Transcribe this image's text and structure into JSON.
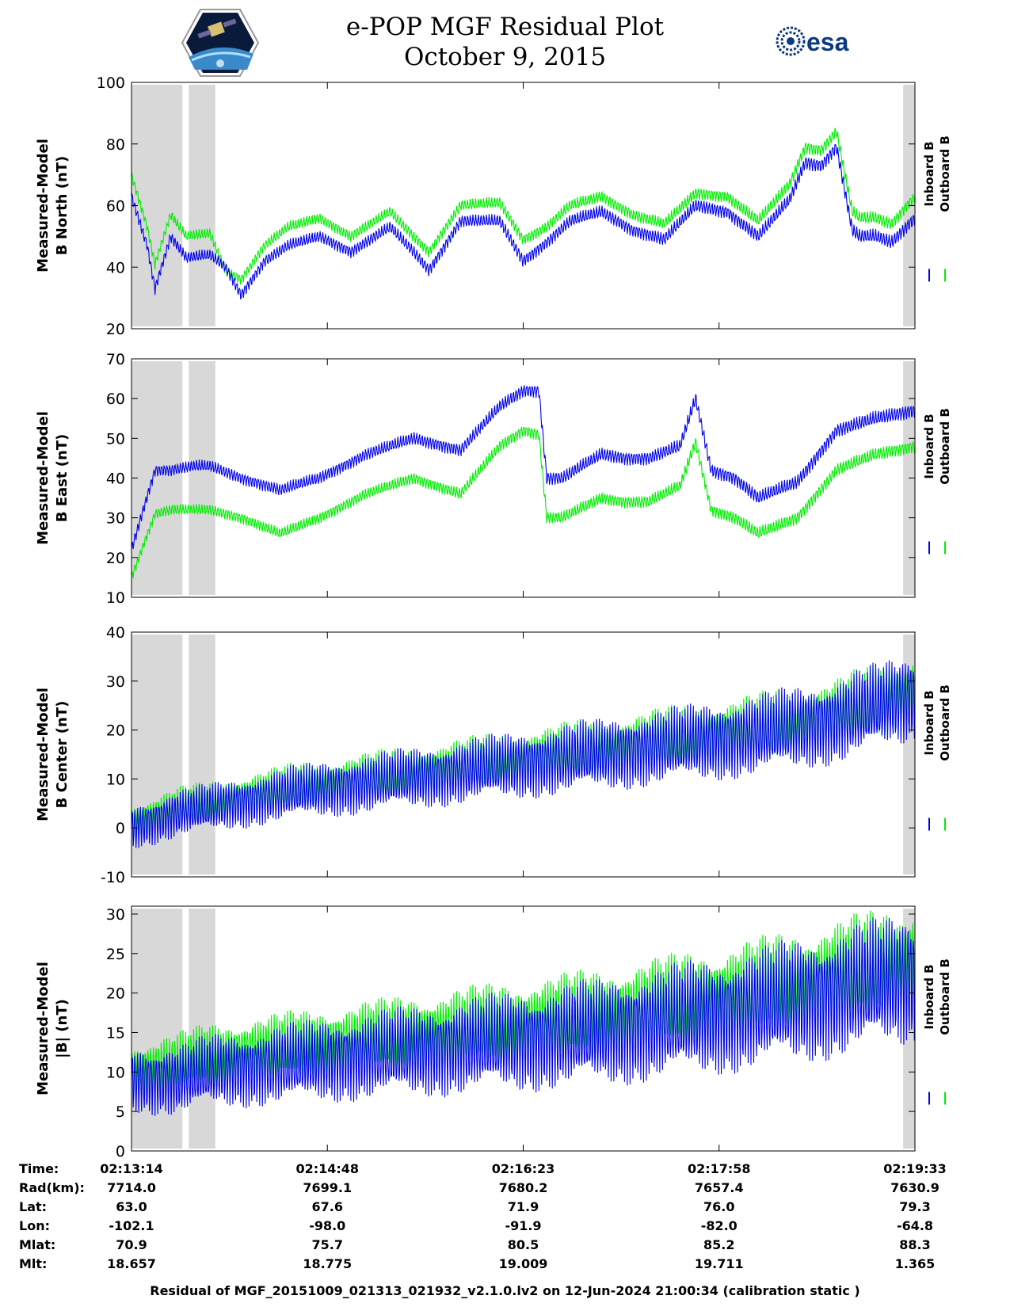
{
  "header": {
    "title": "e-POP MGF Residual Plot",
    "date": "October 9, 2015",
    "logo_left": "cassiope-mission-patch",
    "logo_right_text": "esa"
  },
  "colors": {
    "inboard": "#0000ee",
    "outboard": "#00ee00",
    "shade": "#d8d8d8"
  },
  "chart_data": [
    {
      "type": "line",
      "id": "north",
      "ylabel": [
        "Measured-Model",
        "B North (nT)"
      ],
      "ylim": [
        20,
        100
      ],
      "yticks": [
        20,
        40,
        60,
        80,
        100
      ],
      "legend": [
        "Inboard B",
        "Outboard B"
      ],
      "osc_amp": 2.5,
      "series": [
        {
          "name": "Inboard B",
          "t": [
            0,
            0.02,
            0.03,
            0.05,
            0.07,
            0.1,
            0.12,
            0.14,
            0.17,
            0.2,
            0.24,
            0.28,
            0.33,
            0.36,
            0.38,
            0.42,
            0.47,
            0.5,
            0.53,
            0.56,
            0.6,
            0.64,
            0.68,
            0.72,
            0.76,
            0.8,
            0.84,
            0.86,
            0.88,
            0.9,
            0.92,
            0.93,
            0.95,
            0.97,
            1.0
          ],
          "y": [
            63,
            47,
            33,
            50,
            43,
            44,
            40,
            31,
            42,
            47,
            50,
            45,
            53,
            45,
            39,
            55,
            55,
            42,
            48,
            55,
            58,
            52,
            49,
            60,
            58,
            50,
            62,
            74,
            73,
            79,
            52,
            50,
            50,
            48,
            56
          ]
        },
        {
          "name": "Outboard B",
          "t": [
            0,
            0.02,
            0.03,
            0.05,
            0.07,
            0.1,
            0.12,
            0.14,
            0.17,
            0.2,
            0.24,
            0.28,
            0.33,
            0.36,
            0.38,
            0.42,
            0.47,
            0.5,
            0.53,
            0.56,
            0.6,
            0.64,
            0.68,
            0.72,
            0.76,
            0.8,
            0.84,
            0.86,
            0.88,
            0.9,
            0.92,
            0.93,
            0.95,
            0.97,
            1.0
          ],
          "y": [
            70,
            53,
            41,
            57,
            50,
            51,
            39,
            36,
            47,
            53,
            56,
            50,
            58,
            50,
            45,
            60,
            61,
            49,
            53,
            60,
            63,
            57,
            54,
            64,
            63,
            55,
            67,
            79,
            78,
            84,
            58,
            56,
            56,
            54,
            63
          ]
        }
      ]
    },
    {
      "type": "line",
      "id": "east",
      "ylabel": [
        "Measured-Model",
        "B East (nT)"
      ],
      "ylim": [
        10,
        70
      ],
      "yticks": [
        10,
        20,
        30,
        40,
        50,
        60,
        70
      ],
      "legend": [
        "Inboard B",
        "Outboard B"
      ],
      "osc_amp": 2.0,
      "series": [
        {
          "name": "Inboard B",
          "t": [
            0,
            0.03,
            0.05,
            0.08,
            0.1,
            0.14,
            0.19,
            0.24,
            0.3,
            0.36,
            0.42,
            0.47,
            0.5,
            0.52,
            0.53,
            0.55,
            0.6,
            0.63,
            0.66,
            0.7,
            0.72,
            0.74,
            0.77,
            0.8,
            0.85,
            0.9,
            0.95,
            1.0
          ],
          "y": [
            22,
            42,
            42,
            43,
            43,
            40,
            37,
            40,
            46,
            50,
            47,
            58,
            62,
            62,
            40,
            40,
            46,
            45,
            45,
            48,
            60,
            42,
            40,
            35,
            39,
            52,
            55,
            57
          ]
        },
        {
          "name": "Outboard B",
          "t": [
            0,
            0.03,
            0.05,
            0.08,
            0.1,
            0.14,
            0.19,
            0.24,
            0.3,
            0.36,
            0.42,
            0.47,
            0.5,
            0.52,
            0.53,
            0.55,
            0.6,
            0.63,
            0.66,
            0.7,
            0.72,
            0.74,
            0.77,
            0.8,
            0.85,
            0.9,
            0.95,
            1.0
          ],
          "y": [
            15,
            31,
            32,
            32,
            32,
            30,
            26,
            30,
            36,
            40,
            36,
            48,
            52,
            51,
            30,
            30,
            35,
            34,
            34,
            38,
            49,
            32,
            30,
            26,
            30,
            42,
            46,
            48
          ]
        }
      ]
    },
    {
      "type": "line",
      "id": "center",
      "ylabel": [
        "Measured-Model",
        "B Center (nT)"
      ],
      "ylim": [
        -10,
        40
      ],
      "yticks": [
        -10,
        0,
        10,
        20,
        30,
        40
      ],
      "legend": [
        "Inboard B",
        "Outboard B"
      ],
      "osc_amp": 6.0,
      "series": [
        {
          "name": "Inboard B",
          "t": [
            0,
            0.06,
            0.1,
            0.2,
            0.4,
            0.6,
            0.8,
            0.9,
            1.0
          ],
          "y": [
            0,
            3,
            4,
            7,
            11,
            15,
            19,
            22,
            27
          ]
        },
        {
          "name": "Outboard B",
          "t": [
            0,
            0.06,
            0.1,
            0.2,
            0.4,
            0.6,
            0.8,
            0.9,
            1.0
          ],
          "y": [
            1,
            4,
            5,
            8,
            12,
            16,
            20,
            23,
            28
          ]
        }
      ]
    },
    {
      "type": "line",
      "id": "total",
      "ylabel": [
        "Measured-Model",
        "|B| (nT)"
      ],
      "ylim": [
        0,
        31
      ],
      "yticks": [
        0,
        5,
        10,
        15,
        20,
        25,
        30
      ],
      "legend": [
        "Inboard B",
        "Outboard B"
      ],
      "osc_amp": 5.5,
      "series": [
        {
          "name": "Inboard B",
          "t": [
            0,
            0.06,
            0.1,
            0.2,
            0.4,
            0.6,
            0.8,
            0.9,
            1.0
          ],
          "y": [
            9,
            9,
            10,
            11,
            13,
            15,
            18,
            20,
            22
          ]
        },
        {
          "name": "Outboard B",
          "t": [
            0,
            0.06,
            0.1,
            0.2,
            0.4,
            0.6,
            0.8,
            0.9,
            1.0
          ],
          "y": [
            10,
            11,
            12,
            13,
            15,
            17,
            20,
            22,
            24
          ]
        }
      ]
    }
  ],
  "shaded_intervals": [
    [
      0,
      0.065
    ],
    [
      0.073,
      0.107
    ],
    [
      0.985,
      1.0
    ]
  ],
  "info": {
    "labels": [
      "Time:",
      "Rad(km):",
      "Lat:",
      "Lon:",
      "Mlat:",
      "Mlt:"
    ],
    "columns": [
      [
        "02:13:14",
        "7714.0",
        "63.0",
        "-102.1",
        "70.9",
        "18.657"
      ],
      [
        "02:14:48",
        "7699.1",
        "67.6",
        "-98.0",
        "75.7",
        "18.775"
      ],
      [
        "02:16:23",
        "7680.2",
        "71.9",
        "-91.9",
        "80.5",
        "19.009"
      ],
      [
        "02:17:58",
        "7657.4",
        "76.0",
        "-82.0",
        "85.2",
        "19.711"
      ],
      [
        "02:19:33",
        "7630.9",
        "79.3",
        "-64.8",
        "88.3",
        "1.365"
      ]
    ]
  },
  "footer": "Residual of MGF_20151009_021313_021932_v2.1.0.lv2 on 12-Jun-2024 21:00:34 (calibration static )"
}
